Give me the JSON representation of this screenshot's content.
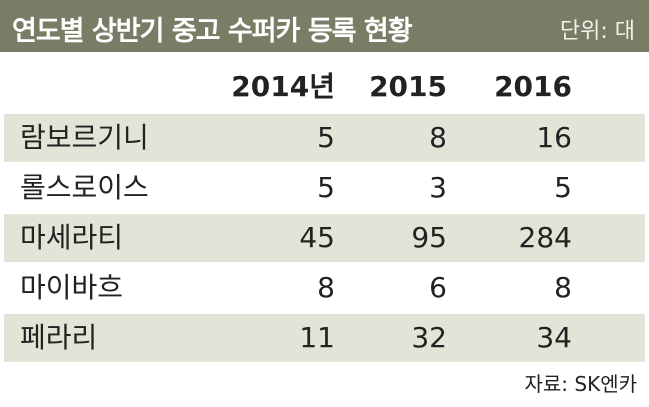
{
  "header": {
    "title": "연도별 상반기 중고 수퍼카 등록 현황",
    "unit": "단위: 대"
  },
  "table": {
    "columns": [
      "2014년",
      "2015",
      "2016"
    ],
    "rows": [
      [
        "람보르기니",
        5,
        8,
        16
      ],
      [
        "롤스로이스",
        5,
        3,
        5
      ],
      [
        "마세라티",
        45,
        95,
        284
      ],
      [
        "마이바흐",
        8,
        6,
        8
      ],
      [
        "페라리",
        11,
        32,
        34
      ]
    ]
  },
  "source": "자료: SK엔카"
}
